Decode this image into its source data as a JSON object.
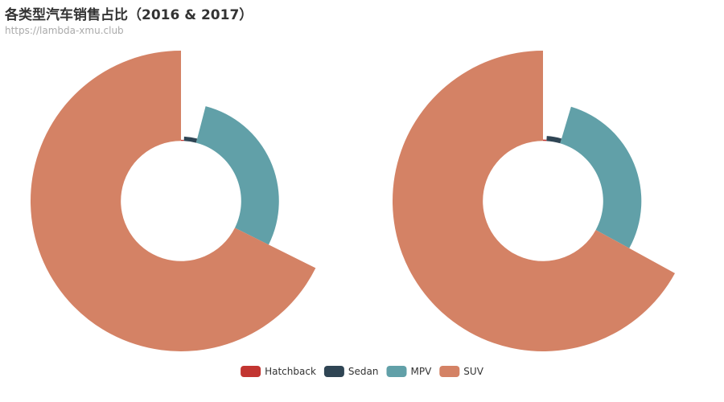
{
  "chart_data": {
    "type": "pie",
    "subtype": "rose-radius",
    "title": "各类型汽车销售占比（2016 & 2017）",
    "subtitle": "https://lambda-xmu.club",
    "categories": [
      "Hatchback",
      "Sedan",
      "MPV",
      "SUV"
    ],
    "colors": [
      "#c23531",
      "#2f4554",
      "#61a0a8",
      "#d48265"
    ],
    "legend_position": "bottom-center",
    "inner_radius_fraction": 0.4,
    "series": [
      {
        "name": "2016",
        "values": [
          2.2,
          9.3,
          80.5,
          192.3
        ]
      },
      {
        "name": "2017",
        "values": [
          2.6,
          10.3,
          79.5,
          187.8
        ]
      }
    ]
  }
}
